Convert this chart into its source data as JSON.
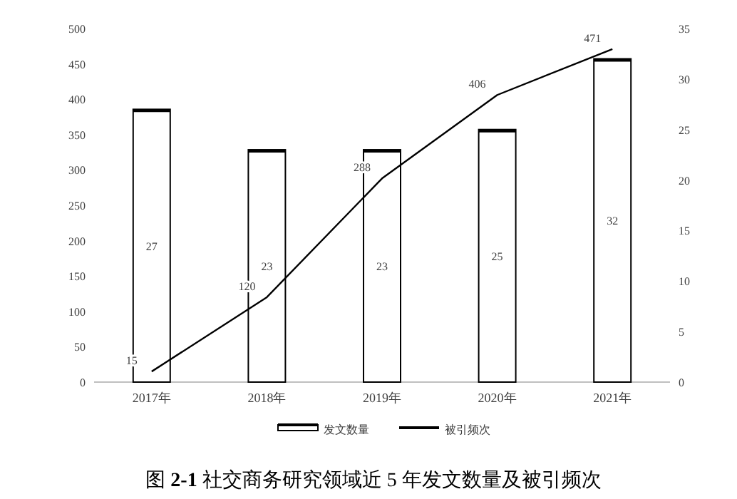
{
  "chart_data": {
    "type": "bar",
    "title": "图 **2-1** 社交商务研究领域近 5 年发文数量及被引频次",
    "categories": [
      "2017年",
      "2018年",
      "2019年",
      "2020年",
      "2021年"
    ],
    "series": [
      {
        "name": "发文数量",
        "axis": "y2",
        "color": "#ffffff",
        "values": [
          27,
          23,
          23,
          25,
          32
        ]
      },
      {
        "name": "被引频次",
        "type": "line",
        "color": "#000000",
        "values": [
          15,
          120,
          288,
          406,
          471
        ]
      }
    ],
    "ylim": [
      0,
      500
    ],
    "yticks": [
      0,
      50,
      100,
      150,
      200,
      250,
      300,
      350,
      400,
      450,
      500
    ],
    "y2lim": [
      0,
      35
    ],
    "y2ticks": [
      0,
      5,
      10,
      15,
      20,
      25,
      30,
      35
    ],
    "data_labels": true,
    "grid": false,
    "legend": "bottom",
    "marker": "none",
    "line_style": "solid"
  }
}
